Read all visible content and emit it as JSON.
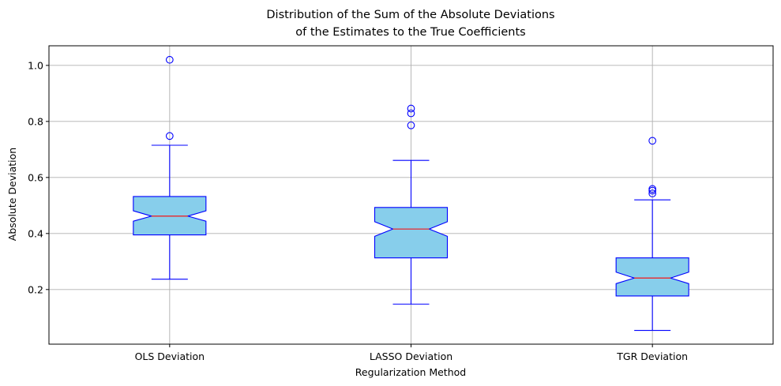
{
  "chart_data": {
    "type": "box",
    "title_lines": [
      "Distribution of the Sum of the Absolute Deviations",
      "of the Estimates to the True Coefficients"
    ],
    "xlabel": "Regularization Method",
    "ylabel": "Absolute Deviation",
    "categories": [
      "OLS Deviation",
      "LASSO Deviation",
      "TGR Deviation"
    ],
    "ylim": [
      0.005,
      1.07
    ],
    "yticks": [
      0.2,
      0.4,
      0.6,
      0.8,
      1.0
    ],
    "ytick_labels": [
      "0.2",
      "0.4",
      "0.6",
      "0.8",
      "1.0"
    ],
    "grid": true,
    "notched": true,
    "colors": {
      "box_fill": "#87ceeb",
      "box_edge": "#0000ff",
      "median": "#ff0000",
      "grid": "#b0b0b0",
      "flier_edge": "#0000ff"
    },
    "boxes": [
      {
        "name": "OLS Deviation",
        "whisker_low": 0.237,
        "q1": 0.395,
        "median": 0.462,
        "q3": 0.532,
        "whisker_high": 0.715,
        "notch_low": 0.444,
        "notch_high": 0.481,
        "outliers": [
          0.748,
          1.02
        ]
      },
      {
        "name": "LASSO Deviation",
        "whisker_low": 0.148,
        "q1": 0.313,
        "median": 0.416,
        "q3": 0.493,
        "whisker_high": 0.661,
        "notch_low": 0.39,
        "notch_high": 0.442,
        "outliers": [
          0.786,
          0.829,
          0.846
        ]
      },
      {
        "name": "TGR Deviation",
        "whisker_low": 0.054,
        "q1": 0.177,
        "median": 0.241,
        "q3": 0.313,
        "whisker_high": 0.52,
        "notch_low": 0.221,
        "notch_high": 0.262,
        "outliers": [
          0.543,
          0.553,
          0.559,
          0.731
        ]
      }
    ]
  }
}
